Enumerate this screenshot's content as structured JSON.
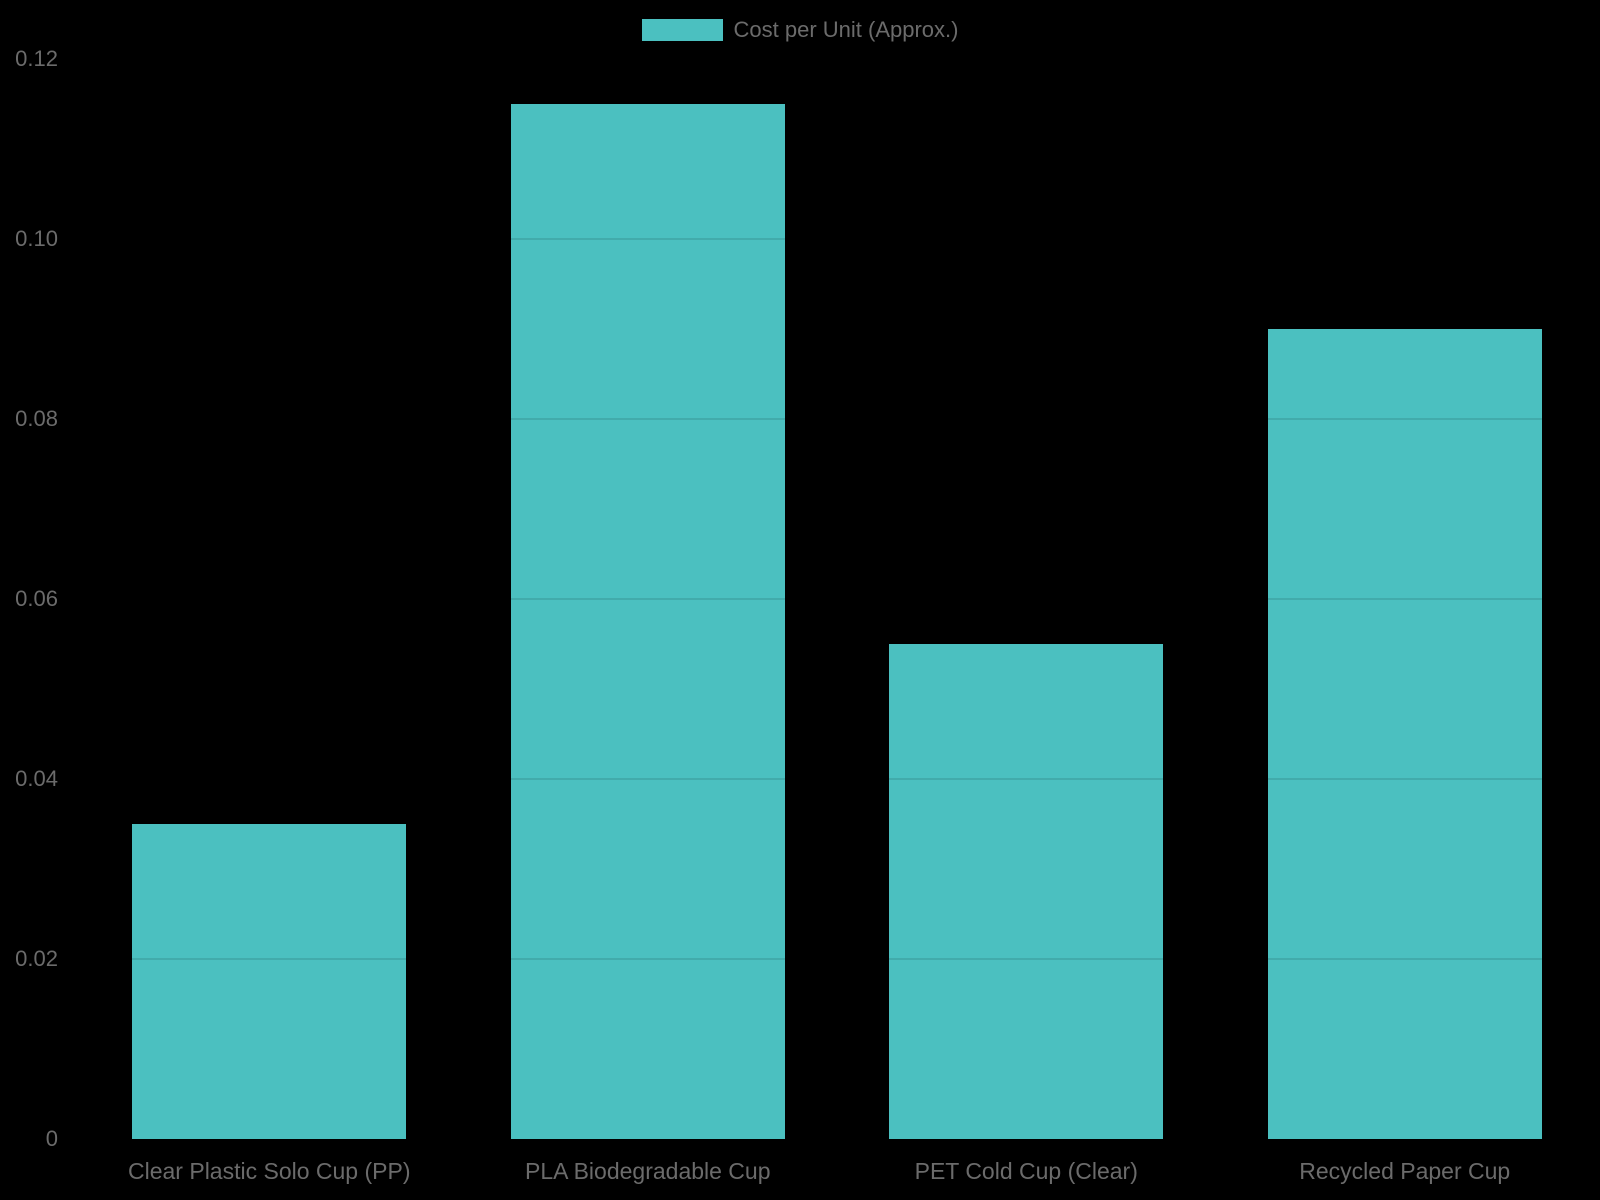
{
  "legend": {
    "label": "Cost per Unit (Approx.)"
  },
  "chart_data": {
    "type": "bar",
    "title": "",
    "categories": [
      "Clear Plastic Solo Cup (PP)",
      "PLA Biodegradable Cup",
      "PET Cold Cup (Clear)",
      "Recycled Paper Cup"
    ],
    "series": [
      {
        "name": "Cost per Unit (Approx.)",
        "values": [
          0.035,
          0.115,
          0.055,
          0.09
        ]
      }
    ],
    "xlabel": "",
    "ylabel": "",
    "ylim": [
      0,
      0.12
    ],
    "ytick_values": [
      0,
      0.02,
      0.04,
      0.06,
      0.08,
      0.1,
      0.12
    ],
    "ytick_labels": [
      "0",
      "0.02",
      "0.04",
      "0.06",
      "0.08",
      "0.10",
      "0.12"
    ],
    "grid": "horizontal, visible only over bars",
    "legend_position": "top-center",
    "colors": {
      "bar": "#4bc0c0",
      "background": "#000000",
      "text": "#6b6b6b",
      "grid_overlay": "rgba(0,0,0,0.11)"
    }
  }
}
